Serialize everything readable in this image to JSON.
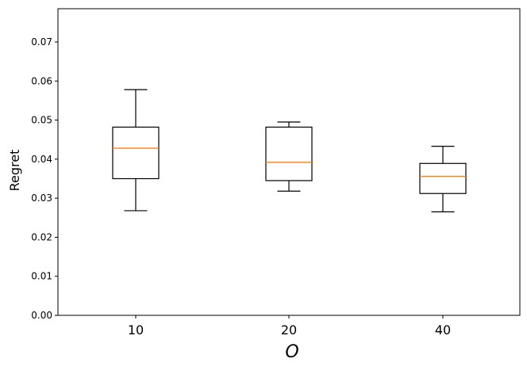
{
  "chart_data": {
    "type": "boxplot",
    "title": "",
    "xlabel": "O",
    "ylabel": "Regret",
    "categories": [
      "10",
      "20",
      "40"
    ],
    "boxes": [
      {
        "category": "10",
        "whisker_low": 0.0268,
        "q1": 0.035,
        "median": 0.0428,
        "q3": 0.0482,
        "whisker_high": 0.0578
      },
      {
        "category": "20",
        "whisker_low": 0.0318,
        "q1": 0.0345,
        "median": 0.0392,
        "q3": 0.0482,
        "whisker_high": 0.0495
      },
      {
        "category": "40",
        "whisker_low": 0.0265,
        "q1": 0.0312,
        "median": 0.0356,
        "q3": 0.0389,
        "whisker_high": 0.0433
      }
    ],
    "yticks": [
      "0.00",
      "0.01",
      "0.02",
      "0.03",
      "0.04",
      "0.05",
      "0.06",
      "0.07"
    ],
    "ylim": [
      0.0,
      0.078
    ],
    "grid": false,
    "colors": {
      "box": "#000000",
      "median": "#ff7f0e",
      "axes": "#000000"
    }
  }
}
